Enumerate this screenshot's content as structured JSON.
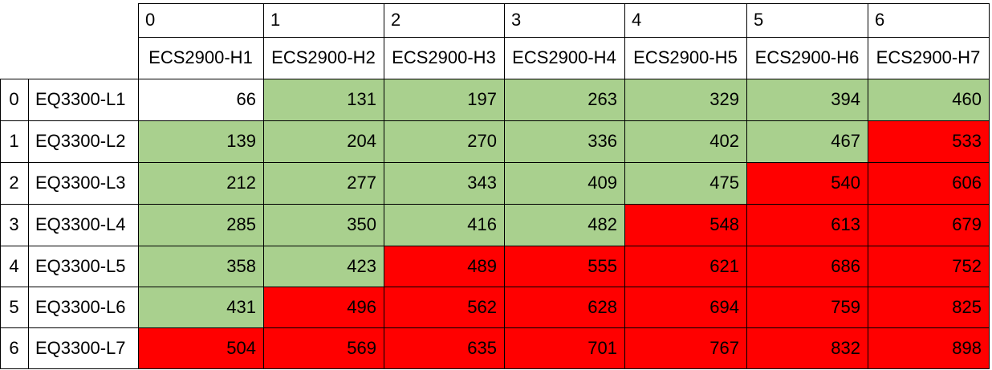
{
  "table": {
    "col_index_labels": [
      "0",
      "1",
      "2",
      "3",
      "4",
      "5",
      "6"
    ],
    "col_headers": [
      "ECS2900-H1",
      "ECS2900-H2",
      "ECS2900-H3",
      "ECS2900-H4",
      "ECS2900-H5",
      "ECS2900-H6",
      "ECS2900-H7"
    ],
    "rows": [
      {
        "index": "0",
        "name": "EQ3300-L1",
        "values": [
          "66",
          "131",
          "197",
          "263",
          "329",
          "394",
          "460"
        ],
        "status": [
          "none",
          "green",
          "green",
          "green",
          "green",
          "green",
          "green"
        ]
      },
      {
        "index": "1",
        "name": "EQ3300-L2",
        "values": [
          "139",
          "204",
          "270",
          "336",
          "402",
          "467",
          "533"
        ],
        "status": [
          "green",
          "green",
          "green",
          "green",
          "green",
          "green",
          "red"
        ]
      },
      {
        "index": "2",
        "name": "EQ3300-L3",
        "values": [
          "212",
          "277",
          "343",
          "409",
          "475",
          "540",
          "606"
        ],
        "status": [
          "green",
          "green",
          "green",
          "green",
          "green",
          "red",
          "red"
        ]
      },
      {
        "index": "3",
        "name": "EQ3300-L4",
        "values": [
          "285",
          "350",
          "416",
          "482",
          "548",
          "613",
          "679"
        ],
        "status": [
          "green",
          "green",
          "green",
          "green",
          "red",
          "red",
          "red"
        ]
      },
      {
        "index": "4",
        "name": "EQ3300-L5",
        "values": [
          "358",
          "423",
          "489",
          "555",
          "621",
          "686",
          "752"
        ],
        "status": [
          "green",
          "green",
          "red",
          "red",
          "red",
          "red",
          "red"
        ]
      },
      {
        "index": "5",
        "name": "EQ3300-L6",
        "values": [
          "431",
          "496",
          "562",
          "628",
          "694",
          "759",
          "825"
        ],
        "status": [
          "green",
          "red",
          "red",
          "red",
          "red",
          "red",
          "red"
        ]
      },
      {
        "index": "6",
        "name": "EQ3300-L7",
        "values": [
          "504",
          "569",
          "635",
          "701",
          "767",
          "832",
          "898"
        ],
        "status": [
          "red",
          "red",
          "red",
          "red",
          "red",
          "red",
          "red"
        ]
      }
    ]
  },
  "colors": {
    "green": "#a9d08e",
    "red": "#ff0000",
    "none": "#ffffff",
    "border": "#000000"
  }
}
